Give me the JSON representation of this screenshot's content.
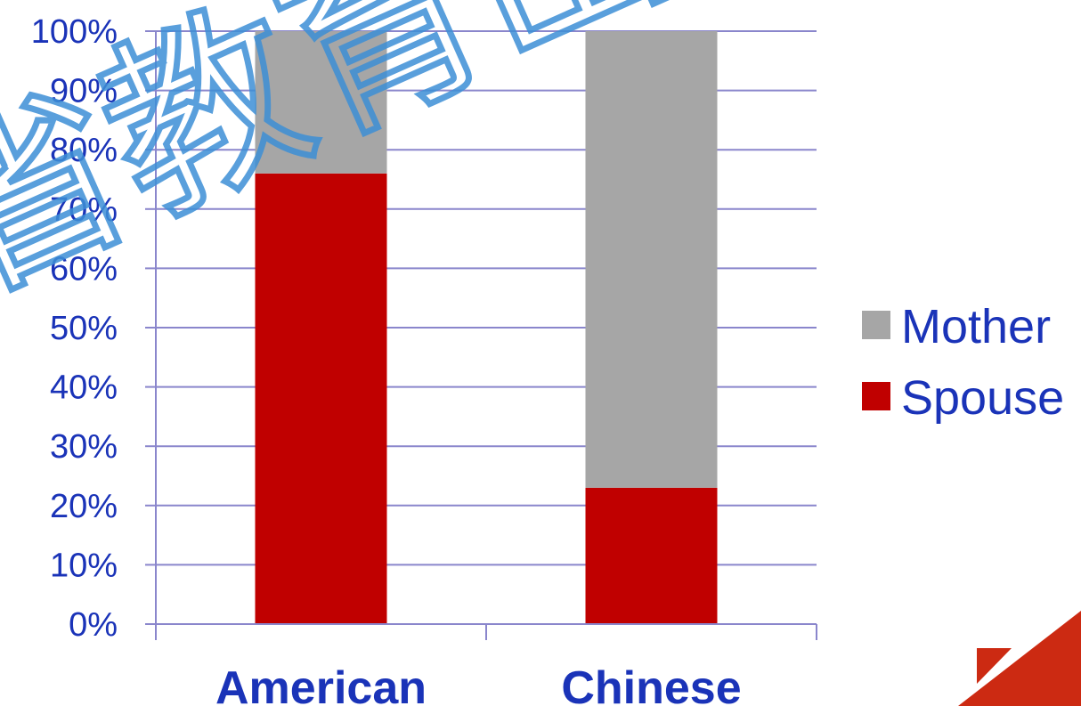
{
  "chart_data": {
    "type": "bar",
    "stacked": true,
    "categories": [
      "American",
      "Chinese"
    ],
    "series": [
      {
        "name": "Spouse",
        "values": [
          76,
          23
        ],
        "color": "#c00000"
      },
      {
        "name": "Mother",
        "values": [
          24,
          77
        ],
        "color": "#a6a6a6"
      }
    ],
    "ylim": [
      0,
      100
    ],
    "yticks": [
      0,
      10,
      20,
      30,
      40,
      50,
      60,
      70,
      80,
      90,
      100
    ],
    "ytick_labels": [
      "0%",
      "10%",
      "20%",
      "30%",
      "40%",
      "50%",
      "60%",
      "70%",
      "80%",
      "90%",
      "100%"
    ],
    "grid": true,
    "legend_position": "right",
    "legend": [
      {
        "name": "Mother",
        "color": "#a6a6a6"
      },
      {
        "name": "Spouse",
        "color": "#c00000"
      }
    ]
  },
  "watermark": {
    "text": "省教育出版",
    "color": "#3d8fd6"
  },
  "logo": {
    "icon": "corner-logo-icon",
    "color": "#cc2a12"
  }
}
